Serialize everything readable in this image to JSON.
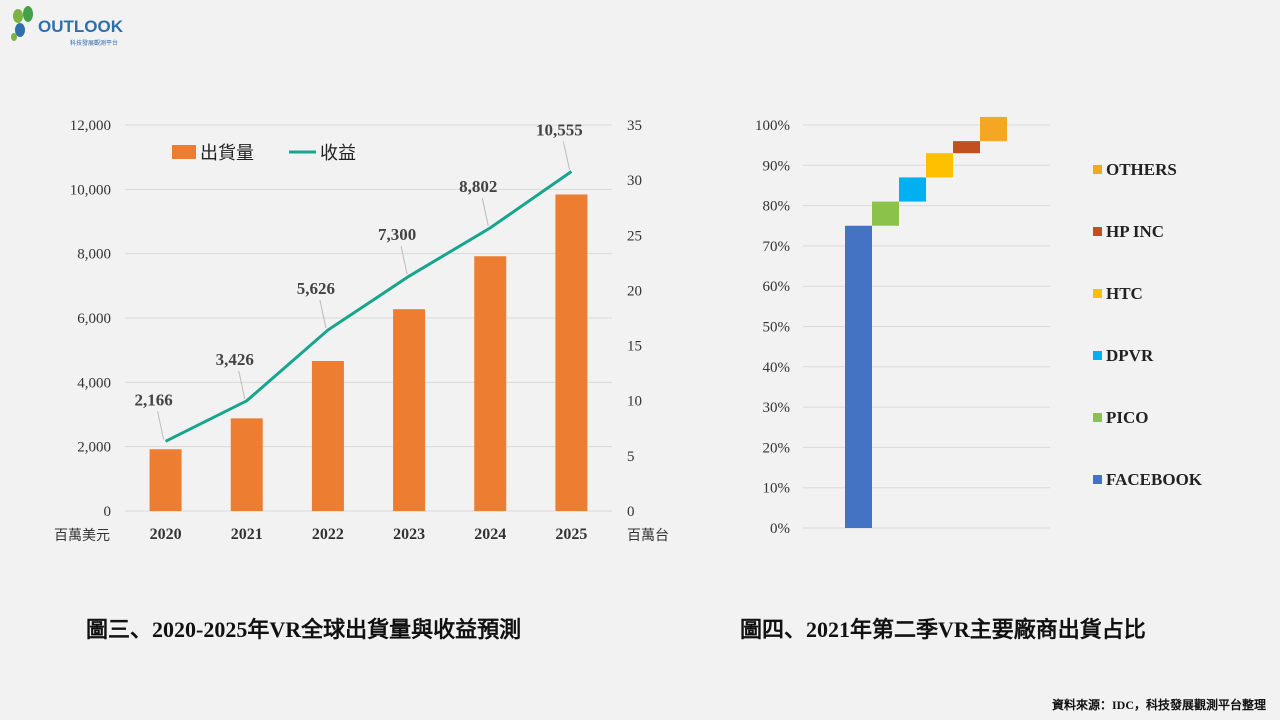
{
  "logo": {
    "text": "OUTLOOK",
    "subtitle": "科技發展觀測平台"
  },
  "chart_data": [
    {
      "type": "bar+line",
      "categories": [
        "2020",
        "2021",
        "2022",
        "2023",
        "2024",
        "2025"
      ],
      "series": [
        {
          "name": "出貨量",
          "chart": "bar",
          "axis": "right",
          "values": [
            5.6,
            8.4,
            13.6,
            18.3,
            23.1,
            28.7
          ],
          "color": "#ed7d31"
        },
        {
          "name": "收益",
          "chart": "line",
          "axis": "left",
          "values": [
            2166,
            3426,
            5626,
            7300,
            8802,
            10555
          ],
          "color": "#17a58e",
          "labels": [
            "2,166",
            "3,426",
            "5,626",
            "7,300",
            "8,802",
            "10,555"
          ]
        }
      ],
      "y_left": {
        "label": "百萬美元",
        "ylim": [
          0,
          12000
        ],
        "ticks": [
          "0",
          "2,000",
          "4,000",
          "6,000",
          "8,000",
          "10,000",
          "12,000"
        ]
      },
      "y_right": {
        "label": "百萬台",
        "ylim": [
          0,
          35
        ],
        "ticks": [
          "0",
          "5",
          "10",
          "15",
          "20",
          "25",
          "30",
          "35"
        ]
      },
      "grid": true,
      "legend": "top-left",
      "caption": "圖三、2020-2025年VR全球出貨量與收益預測"
    },
    {
      "type": "waterfall",
      "categories": [
        "FACEBOOK",
        "PICO",
        "DPVR",
        "HTC",
        "HP INC",
        "OTHERS"
      ],
      "values": [
        75,
        6,
        6,
        6,
        3,
        6
      ],
      "colors": [
        "#4472c4",
        "#8bc34a",
        "#00b0f0",
        "#ffc000",
        "#c0501f",
        "#f5a623"
      ],
      "ylim": [
        0,
        100
      ],
      "ticks": [
        "0%",
        "10%",
        "20%",
        "30%",
        "40%",
        "50%",
        "60%",
        "70%",
        "80%",
        "90%",
        "100%"
      ],
      "grid": true,
      "legend": "right",
      "caption": "圖四、2021年第二季VR主要廠商出貨占比"
    }
  ],
  "source": "資料來源：IDC，科技發展觀測平台整理"
}
